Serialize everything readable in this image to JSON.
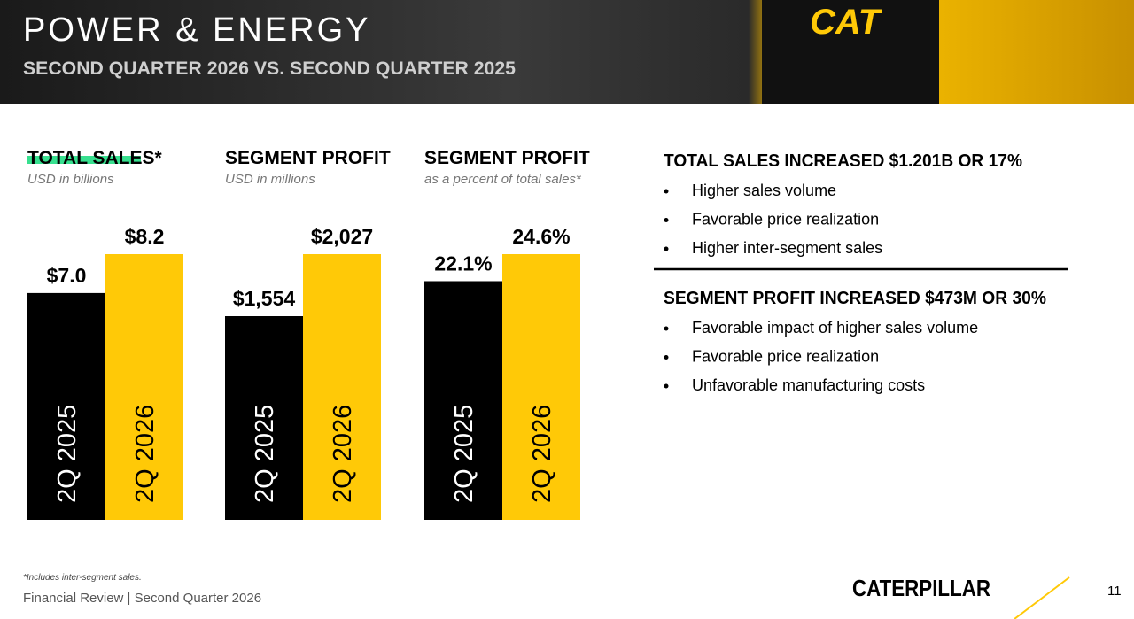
{
  "header": {
    "title": "POWER & ENERGY",
    "subtitle": "SECOND QUARTER 2026 VS. SECOND QUARTER 2025",
    "logo_text": "CAT"
  },
  "chart_data": [
    {
      "type": "bar",
      "title": "TOTAL SALES*",
      "subtitle": "USD in billions",
      "categories": [
        "2Q 2025",
        "2Q 2026"
      ],
      "values": [
        7.0,
        8.2
      ],
      "value_labels": [
        "$7.0",
        "$8.2"
      ],
      "colors": [
        "#000000",
        "#ffc907"
      ]
    },
    {
      "type": "bar",
      "title": "SEGMENT PROFIT",
      "subtitle": "USD in millions",
      "categories": [
        "2Q 2025",
        "2Q 2026"
      ],
      "values": [
        1554,
        2027
      ],
      "value_labels": [
        "$1,554",
        "$2,027"
      ],
      "colors": [
        "#000000",
        "#ffc907"
      ]
    },
    {
      "type": "bar",
      "title": "SEGMENT PROFIT",
      "subtitle": "as a percent of total sales*",
      "categories": [
        "2Q 2025",
        "2Q 2026"
      ],
      "values": [
        22.1,
        24.6
      ],
      "value_labels": [
        "22.1%",
        "24.6%"
      ],
      "colors": [
        "#000000",
        "#ffc907"
      ]
    }
  ],
  "summary": [
    {
      "heading": "TOTAL SALES INCREASED $1.201B OR 17%",
      "bullets": [
        "Higher sales volume",
        "Favorable price realization",
        "Higher inter-segment sales"
      ]
    },
    {
      "heading": "SEGMENT PROFIT INCREASED $473M OR 30%",
      "bullets": [
        "Favorable impact of higher sales volume",
        "Favorable price realization",
        "Unfavorable manufacturing costs"
      ]
    }
  ],
  "footer": {
    "note": "*Includes inter-segment sales.",
    "text": "Financial Review | Second Quarter 2026",
    "brand": "CATERPILLAR",
    "page": "11"
  }
}
